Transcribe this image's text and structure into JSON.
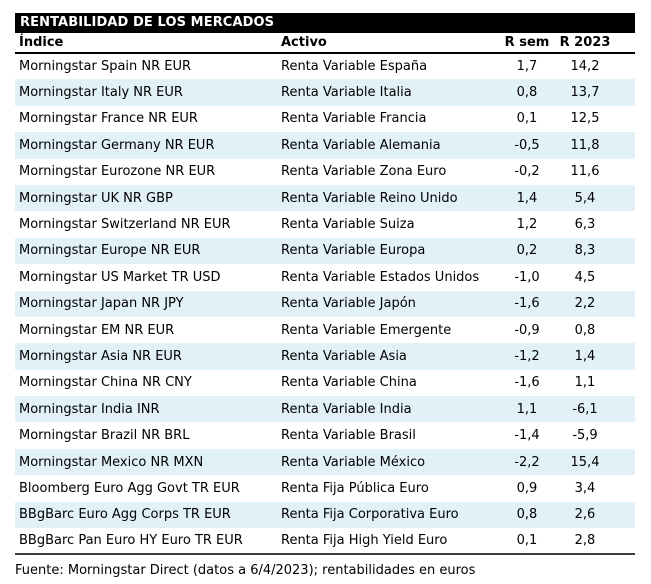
{
  "chart_data": {
    "type": "table",
    "title": "RENTABILIDAD DE LOS MERCADOS",
    "columns": [
      "Índice",
      "Activo",
      "R sem",
      "R 2023"
    ],
    "rows": [
      {
        "indice": "Morningstar Spain NR EUR",
        "activo": "Renta Variable España",
        "r_sem": "1,7",
        "r_2023": "14,2"
      },
      {
        "indice": "Morningstar Italy NR EUR",
        "activo": "Renta Variable Italia",
        "r_sem": "0,8",
        "r_2023": "13,7"
      },
      {
        "indice": "Morningstar France NR EUR",
        "activo": "Renta Variable Francia",
        "r_sem": "0,1",
        "r_2023": "12,5"
      },
      {
        "indice": "Morningstar Germany NR EUR",
        "activo": "Renta Variable Alemania",
        "r_sem": "-0,5",
        "r_2023": "11,8"
      },
      {
        "indice": "Morningstar Eurozone NR EUR",
        "activo": "Renta Variable Zona Euro",
        "r_sem": "-0,2",
        "r_2023": "11,6"
      },
      {
        "indice": "Morningstar UK NR GBP",
        "activo": "Renta Variable Reino Unido",
        "r_sem": "1,4",
        "r_2023": "5,4"
      },
      {
        "indice": "Morningstar Switzerland NR EUR",
        "activo": "Renta Variable Suiza",
        "r_sem": "1,2",
        "r_2023": "6,3"
      },
      {
        "indice": "Morningstar Europe NR EUR",
        "activo": "Renta Variable Europa",
        "r_sem": "0,2",
        "r_2023": "8,3"
      },
      {
        "indice": "Morningstar US Market TR USD",
        "activo": "Renta Variable Estados Unidos",
        "r_sem": "-1,0",
        "r_2023": "4,5"
      },
      {
        "indice": "Morningstar Japan NR JPY",
        "activo": "Renta Variable Japón",
        "r_sem": "-1,6",
        "r_2023": "2,2"
      },
      {
        "indice": "Morningstar EM NR EUR",
        "activo": "Renta Variable Emergente",
        "r_sem": "-0,9",
        "r_2023": "0,8"
      },
      {
        "indice": "Morningstar Asia NR EUR",
        "activo": "Renta Variable Asia",
        "r_sem": "-1,2",
        "r_2023": "1,4"
      },
      {
        "indice": "Morningstar China NR CNY",
        "activo": "Renta Variable China",
        "r_sem": "-1,6",
        "r_2023": "1,1"
      },
      {
        "indice": "Morningstar India INR",
        "activo": "Renta Variable India",
        "r_sem": "1,1",
        "r_2023": "-6,1"
      },
      {
        "indice": "Morningstar Brazil NR BRL",
        "activo": "Renta Variable Brasil",
        "r_sem": "-1,4",
        "r_2023": "-5,9"
      },
      {
        "indice": "Morningstar Mexico NR MXN",
        "activo": "Renta Variable México",
        "r_sem": "-2,2",
        "r_2023": "15,4"
      },
      {
        "indice": "Bloomberg Euro Agg Govt TR EUR",
        "activo": "Renta Fija Pública Euro",
        "r_sem": "0,9",
        "r_2023": "3,4"
      },
      {
        "indice": "BBgBarc Euro Agg Corps TR EUR",
        "activo": "Renta Fija Corporativa Euro",
        "r_sem": "0,8",
        "r_2023": "2,6"
      },
      {
        "indice": "BBgBarc Pan Euro HY Euro TR EUR",
        "activo": "Renta Fija High Yield Euro",
        "r_sem": "0,1",
        "r_2023": "2,8"
      }
    ],
    "source": "Fuente: Morningstar Direct (datos a 6/4/2023); rentabilidades en euros",
    "layout": {
      "legend": "none",
      "grid": "zebra-stripes"
    }
  },
  "colors": {
    "title_bg": "#000000",
    "title_fg": "#ffffff",
    "row_stripe": "#e2f1f8",
    "text": "#000000",
    "header_rule": "#000000",
    "bottom_rule": "#3d3d3d"
  }
}
